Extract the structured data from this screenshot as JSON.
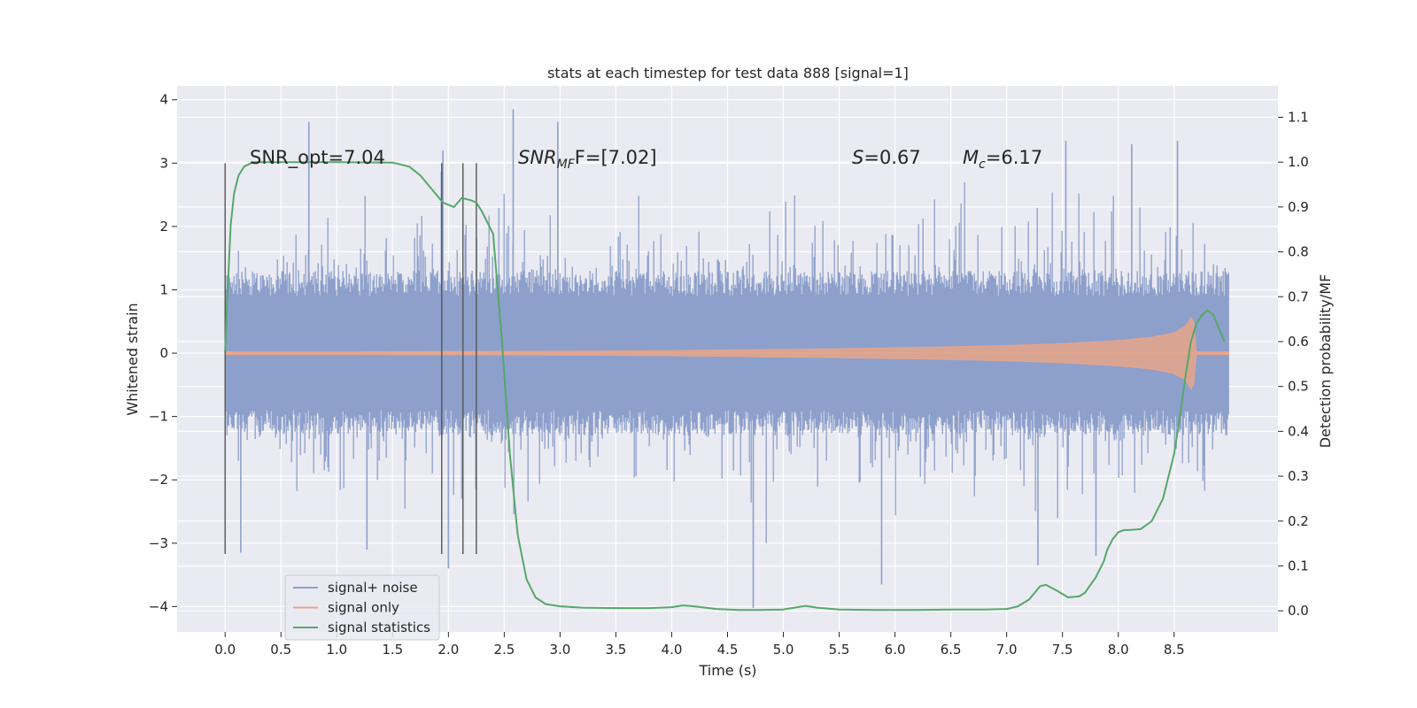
{
  "chart_data": {
    "type": "line",
    "title": "stats at each timestep for test data 888 [signal=1]",
    "xlabel": "Time (s)",
    "ylabel_left": "Whitened strain",
    "ylabel_right": "Detection probability/MF",
    "xlim": [
      -0.43,
      9.43
    ],
    "ylim_left": [
      -4.4,
      4.22
    ],
    "ylim_right": [
      -0.047,
      1.17
    ],
    "x_ticks": [
      "0.0",
      "0.5",
      "1.0",
      "1.5",
      "2.0",
      "2.5",
      "3.0",
      "3.5",
      "4.0",
      "4.5",
      "5.0",
      "5.5",
      "6.0",
      "6.5",
      "7.0",
      "7.5",
      "8.0",
      "8.5"
    ],
    "y_ticks_left": [
      "4",
      "3",
      "2",
      "1",
      "0",
      "−1",
      "−2",
      "−3",
      "−4"
    ],
    "y_ticks_right": [
      "1.1",
      "1.0",
      "0.9",
      "0.8",
      "0.7",
      "0.6",
      "0.5",
      "0.4",
      "0.3",
      "0.2",
      "0.1",
      "0.0"
    ],
    "grid": true,
    "legend_position": "lower-left",
    "colors": {
      "background": "#eaeaf2",
      "grid": "#ffffff",
      "noise": "#8da0cb",
      "signal": "#e8a58a",
      "stat": "#55a868",
      "vline": "#555555"
    },
    "annotations": [
      {
        "text": "SNR_opt=7.04"
      },
      {
        "text": "SNRMF=[7.02]",
        "main": "SNR",
        "sub": "MF",
        "rest": "F=[7.02]"
      },
      {
        "text": "S=0.67",
        "main": "S",
        "rest": "=0.67"
      },
      {
        "text": "Mc=6.17",
        "main": "M",
        "sub": "c",
        "rest": "=6.17"
      }
    ],
    "series": [
      {
        "name": "signal+ noise",
        "axis": "left",
        "style": "dense-noise",
        "t_range": [
          0.0,
          8.99
        ],
        "amplitude_sigma": 0.85,
        "extremes": [
          {
            "x": 0.75,
            "y": 3.65
          },
          {
            "x": 2.58,
            "y": 3.85
          },
          {
            "x": 2.98,
            "y": 3.65
          },
          {
            "x": 7.53,
            "y": 3.35
          },
          {
            "x": 8.53,
            "y": 3.35
          },
          {
            "x": 8.12,
            "y": 3.3
          },
          {
            "x": 1.95,
            "y": 3.2
          },
          {
            "x": 4.73,
            "y": -4.02
          },
          {
            "x": 5.88,
            "y": -3.65
          },
          {
            "x": 2.0,
            "y": -3.4
          },
          {
            "x": 7.28,
            "y": -3.35
          },
          {
            "x": 7.8,
            "y": -3.2
          },
          {
            "x": 1.27,
            "y": -3.1
          },
          {
            "x": 0.14,
            "y": -3.15
          }
        ]
      },
      {
        "name": "signal only",
        "axis": "left",
        "style": "chirp-envelope",
        "x": [
          0.0,
          1.0,
          2.0,
          3.0,
          4.0,
          4.5,
          5.0,
          5.5,
          6.0,
          6.5,
          7.0,
          7.5,
          8.0,
          8.3,
          8.5,
          8.6,
          8.65,
          8.67,
          8.69,
          8.99
        ],
        "envelope": [
          0.02,
          0.02,
          0.025,
          0.03,
          0.04,
          0.05,
          0.06,
          0.07,
          0.085,
          0.1,
          0.12,
          0.15,
          0.2,
          0.25,
          0.32,
          0.42,
          0.55,
          0.65,
          0.02,
          0.02
        ]
      },
      {
        "name": "signal statistics",
        "axis": "right",
        "style": "line",
        "x": [
          0.0,
          0.02,
          0.05,
          0.08,
          0.12,
          0.17,
          0.25,
          0.4,
          0.6,
          1.0,
          1.5,
          1.65,
          1.75,
          1.85,
          1.95,
          2.05,
          2.12,
          2.2,
          2.25,
          2.3,
          2.4,
          2.48,
          2.55,
          2.62,
          2.7,
          2.78,
          2.87,
          3.0,
          3.2,
          3.5,
          3.8,
          4.0,
          4.1,
          4.2,
          4.4,
          4.6,
          4.8,
          5.0,
          5.1,
          5.2,
          5.3,
          5.5,
          5.8,
          6.2,
          6.5,
          6.8,
          7.0,
          7.1,
          7.2,
          7.3,
          7.35,
          7.45,
          7.55,
          7.65,
          7.7,
          7.8,
          7.87,
          7.9,
          7.95,
          8.0,
          8.05,
          8.1,
          8.2,
          8.3,
          8.4,
          8.5,
          8.55,
          8.6,
          8.65,
          8.7,
          8.75,
          8.8,
          8.85,
          8.9,
          8.95
        ],
        "y": [
          0.58,
          0.7,
          0.86,
          0.93,
          0.97,
          0.99,
          1.0,
          1.0,
          1.0,
          1.0,
          0.999,
          0.99,
          0.97,
          0.94,
          0.91,
          0.9,
          0.92,
          0.915,
          0.91,
          0.89,
          0.84,
          0.6,
          0.35,
          0.17,
          0.07,
          0.03,
          0.015,
          0.01,
          0.007,
          0.006,
          0.006,
          0.008,
          0.012,
          0.01,
          0.004,
          0.002,
          0.002,
          0.003,
          0.007,
          0.011,
          0.007,
          0.003,
          0.002,
          0.002,
          0.003,
          0.003,
          0.004,
          0.01,
          0.025,
          0.055,
          0.058,
          0.045,
          0.03,
          0.032,
          0.04,
          0.075,
          0.11,
          0.135,
          0.16,
          0.175,
          0.18,
          0.18,
          0.182,
          0.2,
          0.25,
          0.35,
          0.43,
          0.52,
          0.6,
          0.64,
          0.66,
          0.67,
          0.66,
          0.63,
          0.6
        ]
      }
    ],
    "vertical_lines": [
      0.0,
      1.94,
      2.13,
      2.25
    ]
  }
}
